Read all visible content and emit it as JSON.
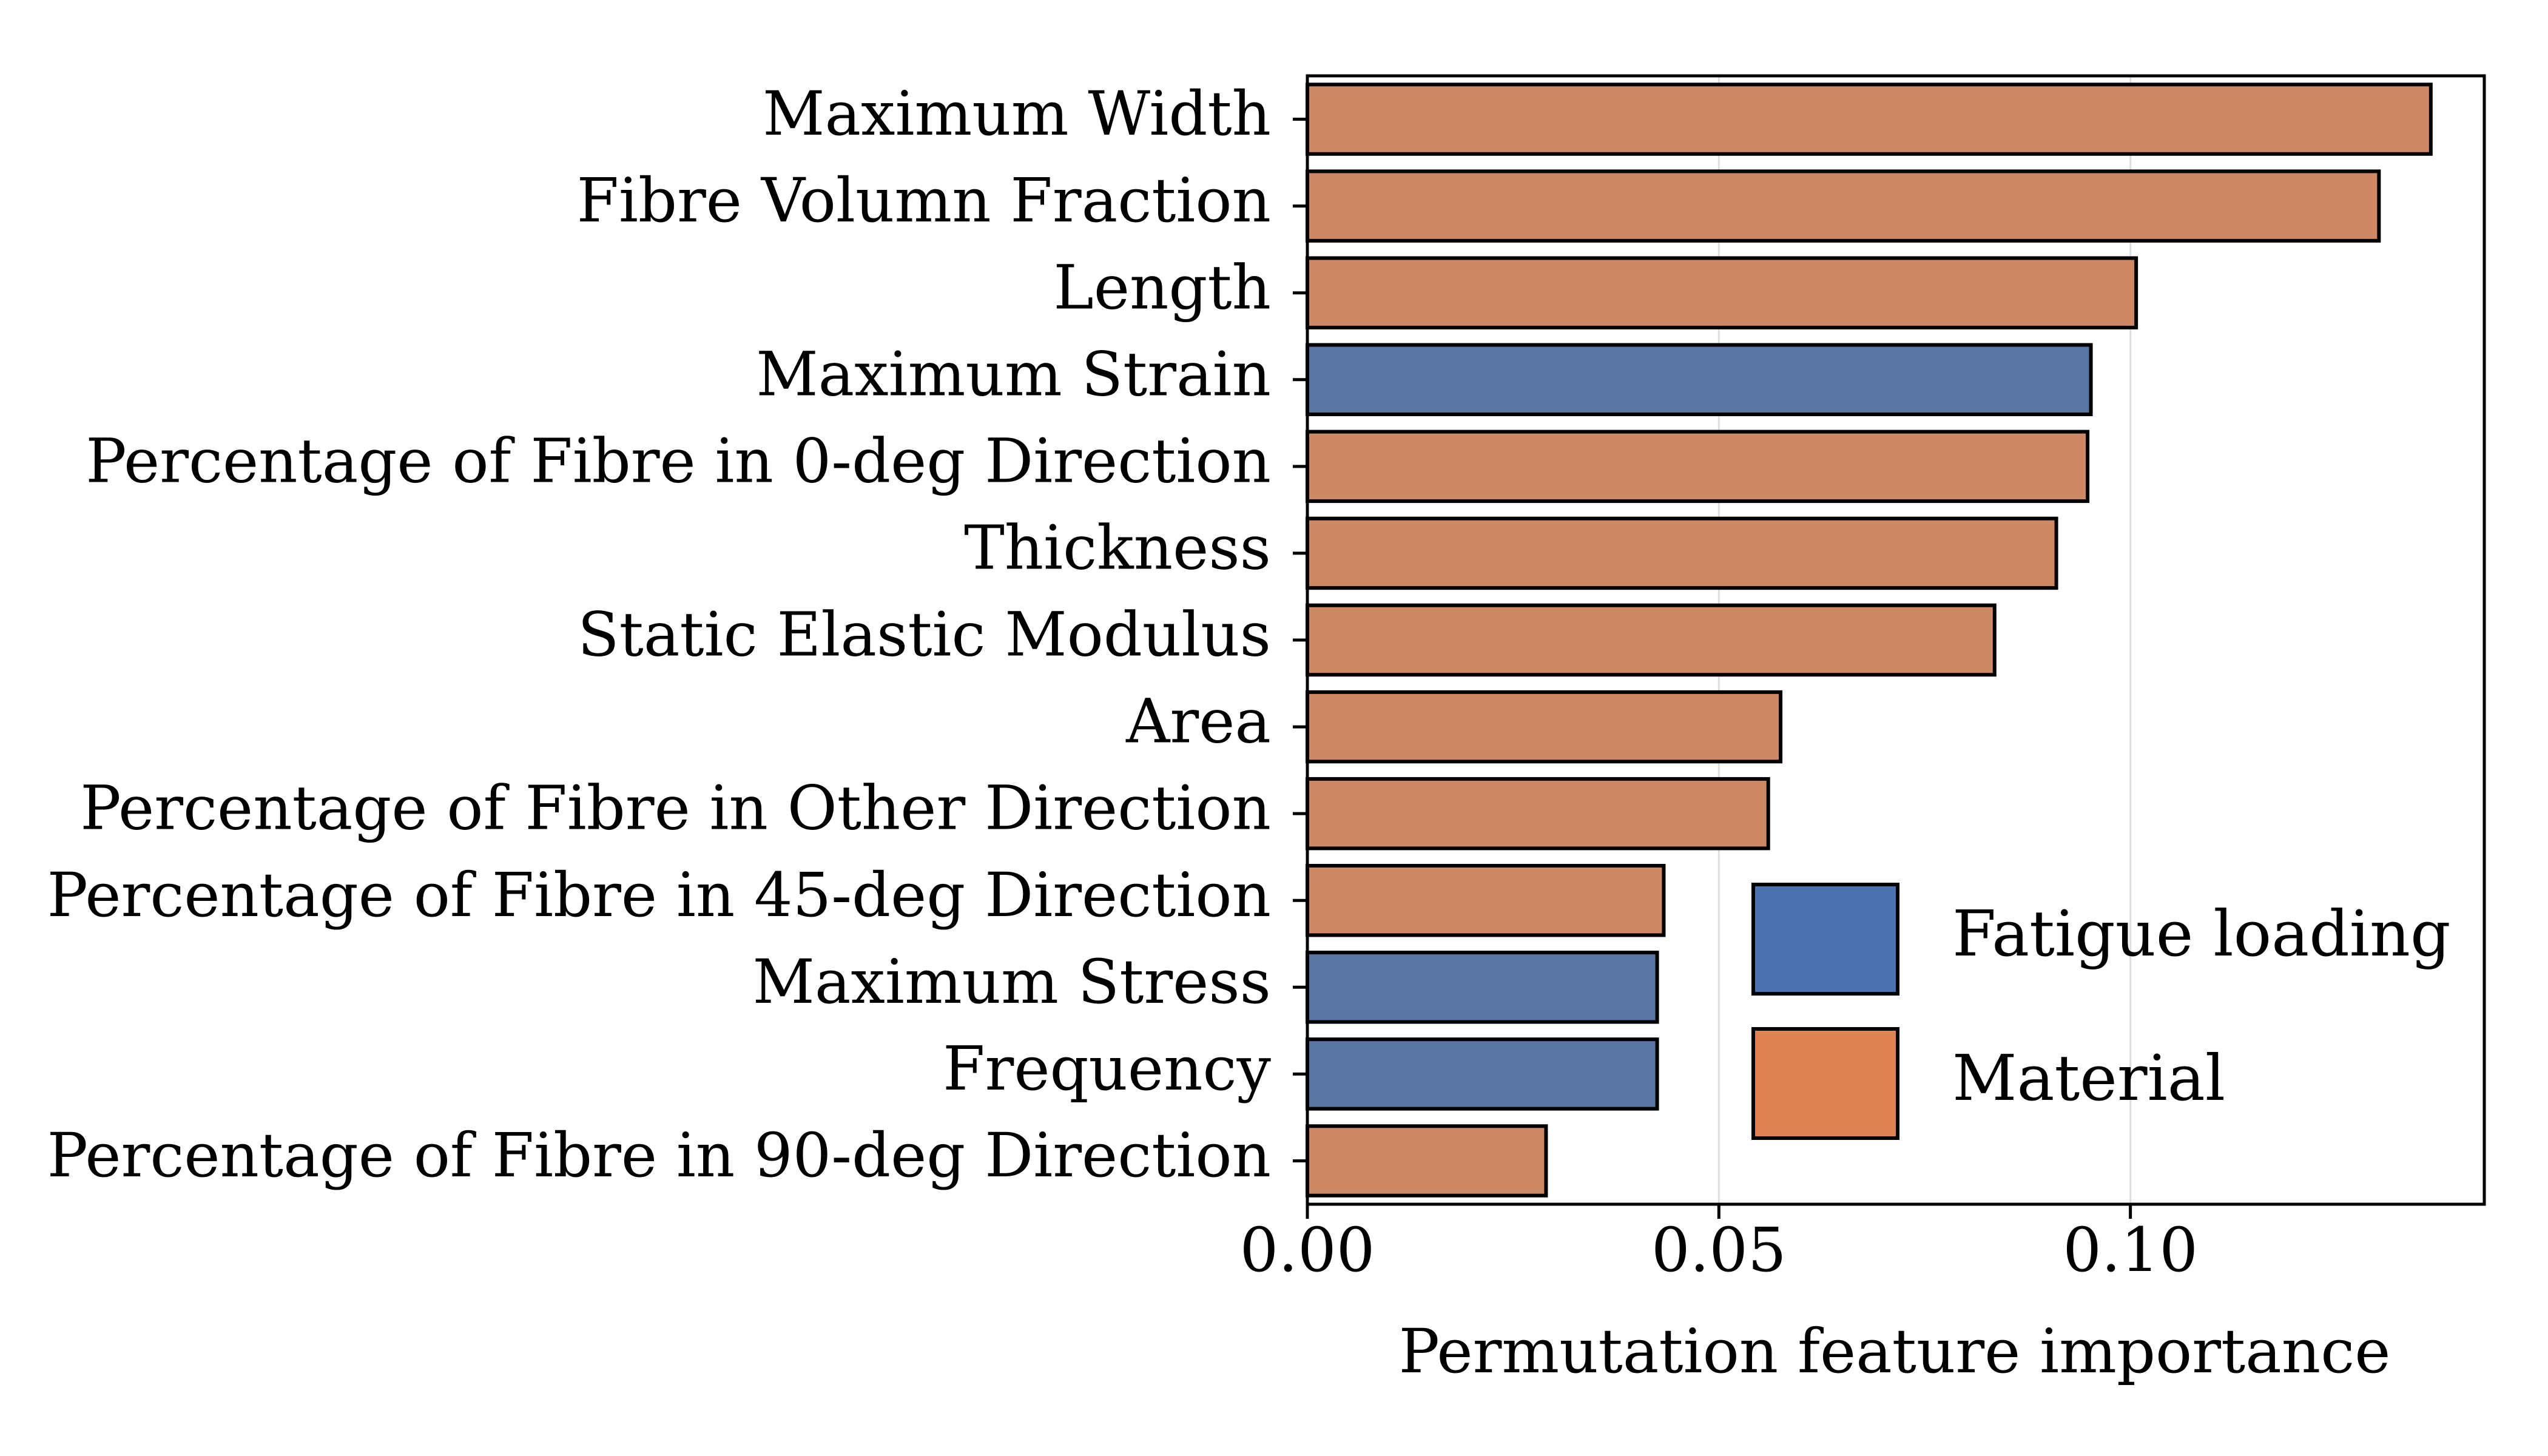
{
  "chart_data": {
    "type": "bar",
    "orientation": "horizontal",
    "title": "",
    "xlabel": "Permutation feature importance",
    "ylabel": "",
    "xlim": [
      0,
      0.143
    ],
    "xticks": [
      0.0,
      0.05,
      0.1
    ],
    "xtick_labels": [
      "0.00",
      "0.05",
      "0.10"
    ],
    "grid": "vertical",
    "legend_position": "lower-right",
    "categories": [
      "Maximum Width",
      "Fibre Volumn Fraction",
      "Length",
      "Maximum Strain",
      "Percentage of Fibre in 0-deg Direction",
      "Thickness",
      "Static Elastic Modulus",
      "Area",
      "Percentage of Fibre in Other Direction",
      "Percentage of Fibre in 45-deg Direction",
      "Maximum Stress",
      "Frequency",
      "Percentage of Fibre in 90-deg Direction"
    ],
    "values": [
      0.1365,
      0.1302,
      0.1007,
      0.0952,
      0.0948,
      0.091,
      0.0835,
      0.0575,
      0.056,
      0.0433,
      0.0425,
      0.0425,
      0.029
    ],
    "groups": [
      "Material",
      "Material",
      "Material",
      "Fatigue loading",
      "Material",
      "Material",
      "Material",
      "Material",
      "Material",
      "Material",
      "Fatigue loading",
      "Fatigue loading",
      "Material"
    ],
    "legend": [
      {
        "name": "Fatigue loading",
        "color": "#4c72b0"
      },
      {
        "name": "Material",
        "color": "#dd8452"
      }
    ],
    "bar_colors": {
      "Fatigue loading": "#5975a4",
      "Material": "#cc8963"
    }
  }
}
